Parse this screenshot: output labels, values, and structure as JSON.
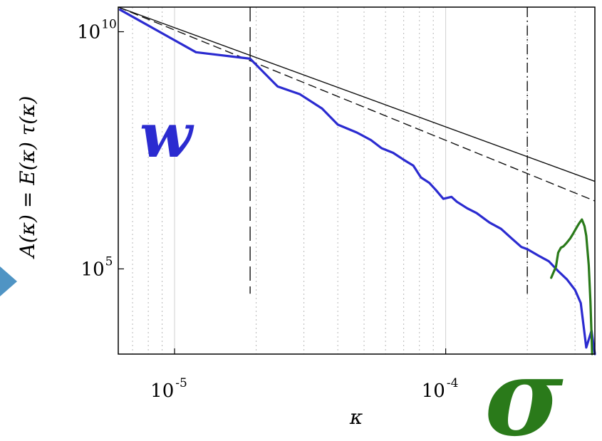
{
  "chart_data": {
    "type": "line",
    "xscale": "log",
    "yscale": "log",
    "xlim": [
      6.2e-06,
      0.000355
    ],
    "ylim": [
      1600,
      33000000000.0
    ],
    "xlabel": "κ",
    "ylabel": "A(κ) = E(κ) τ(κ)",
    "grid_x_minor": true,
    "x_ticks": [
      {
        "value": 1e-05,
        "base": "10",
        "exp": "-5"
      },
      {
        "value": 0.0001,
        "base": "10",
        "exp": "-4"
      }
    ],
    "y_ticks": [
      {
        "value": 100000.0,
        "base": "10",
        "exp": "5"
      },
      {
        "value": 10000000000.0,
        "base": "10",
        "exp": "10"
      }
    ],
    "series": [
      {
        "label": "w",
        "color": "#2b2bd0",
        "style": "solid",
        "x": [
          6.3e-06,
          1.2e-05,
          1.9e-05,
          2.4e-05,
          2.9e-05,
          3.5e-05,
          4e-05,
          4.7e-05,
          5.3e-05,
          5.8e-05,
          6.4e-05,
          7e-05,
          7.6e-05,
          8.1e-05,
          8.7e-05,
          9.2e-05,
          9.8e-05,
          0.000105,
          0.00011,
          0.00012,
          0.00013,
          0.000145,
          0.00016,
          0.000175,
          0.00019,
          0.0002,
          0.00022,
          0.00024,
          0.00026,
          0.00028,
          0.0003,
          0.000315,
          0.00033,
          0.000345,
          0.000355
        ],
        "y": [
          29000000000.0,
          3700000000.0,
          2700000000.0,
          700000000.0,
          480000000.0,
          240000000.0,
          110000000.0,
          75000000.0,
          52000000.0,
          35000000.0,
          28000000.0,
          20000000.0,
          15000000.0,
          8500000.0,
          6500000.0,
          4600000.0,
          3000000.0,
          3300000.0,
          2600000.0,
          1900000.0,
          1500000.0,
          950000.0,
          700000.0,
          440000.0,
          290000.0,
          260000.0,
          190000.0,
          145000.0,
          90000.0,
          60000.0,
          36000.0,
          19000.0,
          2200.0,
          5000.0,
          1600.0
        ]
      },
      {
        "label": "σ",
        "color": "#2a7a1a",
        "style": "solid",
        "x": [
          0.000245,
          0.00025,
          0.000255,
          0.00026,
          0.000266,
          0.000272,
          0.00028,
          0.000288,
          0.000295,
          0.000302,
          0.00031,
          0.000318,
          0.000325,
          0.00033,
          0.000337,
          0.000342,
          0.000347
        ],
        "y": [
          65000.0,
          85000.0,
          110000.0,
          220000.0,
          280000.0,
          300000.0,
          360000.0,
          440000.0,
          550000.0,
          700000.0,
          900000.0,
          1100000.0,
          800000.0,
          500000.0,
          120000.0,
          20000.0,
          1600.0
        ]
      }
    ],
    "reference_lines": [
      {
        "kind": "power-law",
        "style": "solid",
        "color": "#111111",
        "x": [
          6.2e-06,
          0.000355
        ],
        "y": [
          33000000000.0,
          7000000.0
        ]
      },
      {
        "kind": "power-law",
        "style": "dashed",
        "color": "#111111",
        "x": [
          6.2e-06,
          0.000355
        ],
        "y": [
          33000000000.0,
          2700000.0
        ]
      }
    ],
    "vertical_lines": [
      {
        "x": 1.9e-05,
        "style": "dashed",
        "color": "#111111",
        "y_from": 30000.0,
        "y_to": 33000000000.0
      },
      {
        "x": 0.0002,
        "style": "dashdot",
        "color": "#111111",
        "y_from": 30000.0,
        "y_to": 33000000000.0
      }
    ],
    "annotations": [
      {
        "text": "w",
        "color": "#2b2bd0",
        "position": "upper-left inside plot"
      },
      {
        "text": "σ",
        "color": "#2a7a1a",
        "position": "bottom-right outside plot"
      }
    ]
  }
}
